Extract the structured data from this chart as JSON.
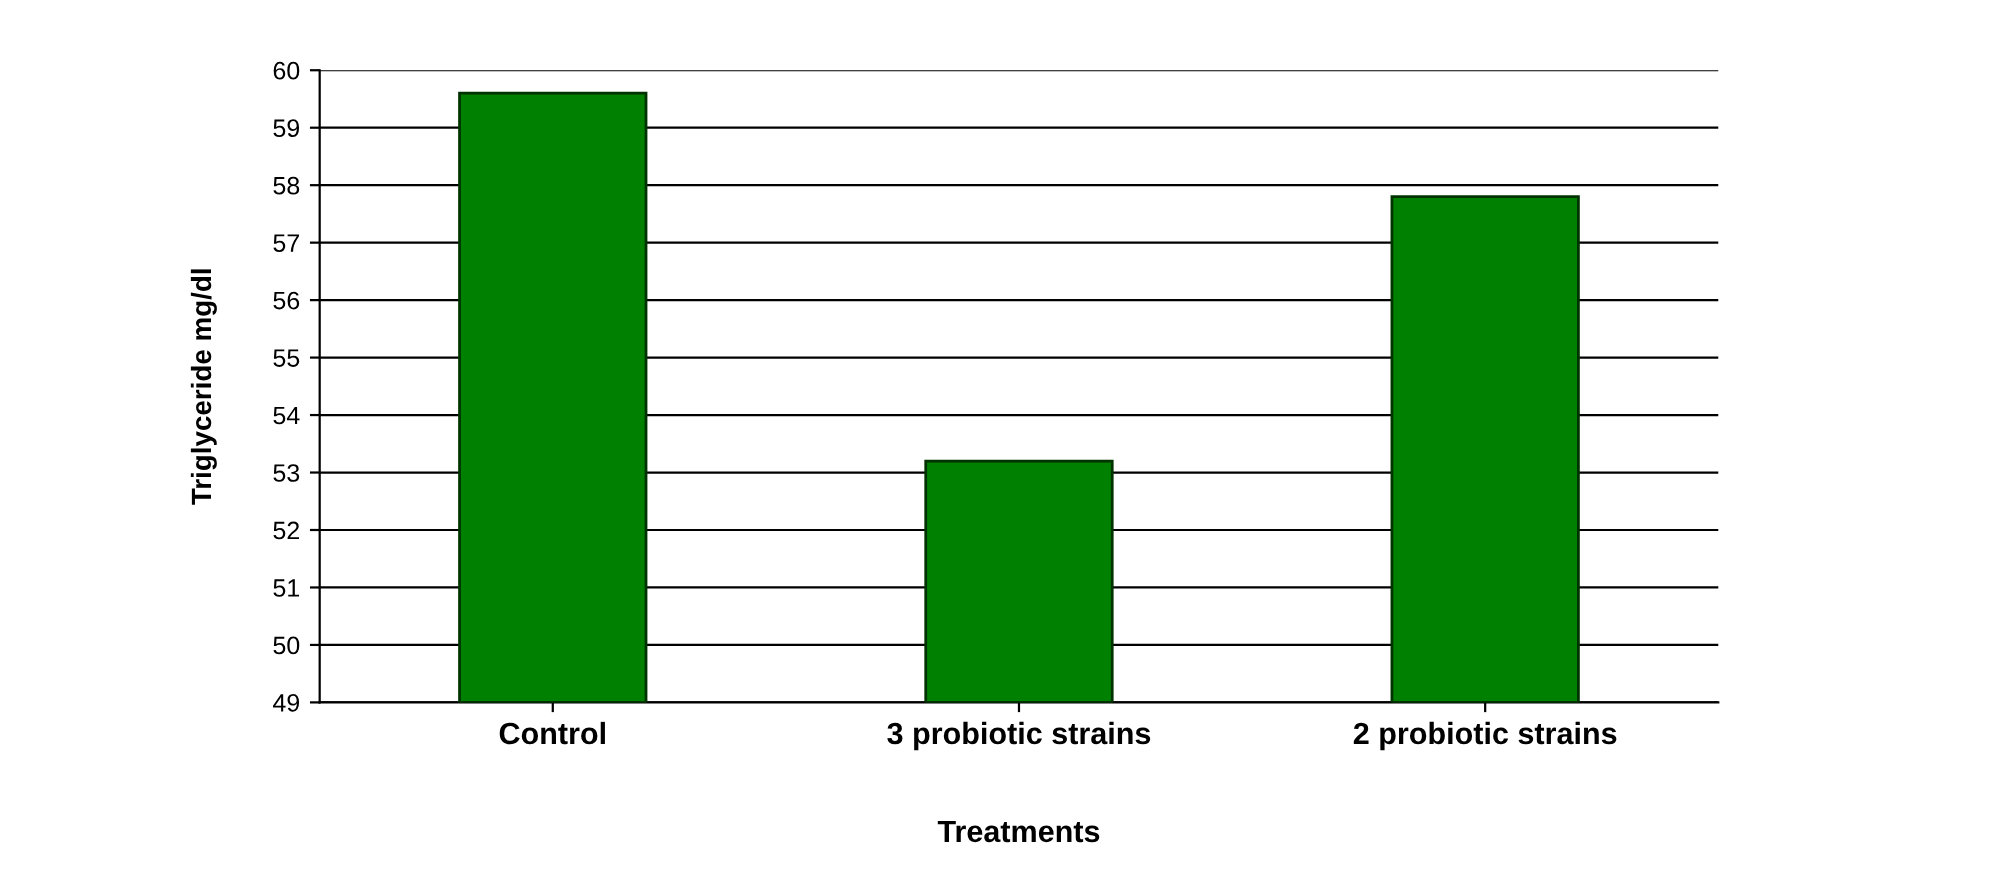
{
  "chart_data": {
    "type": "bar",
    "xlabel": "Treatments",
    "ylabel": "Triglyceride mg/dl",
    "categories": [
      "Control",
      "3 probiotic strains",
      "2 probiotic strains"
    ],
    "values": [
      59.6,
      53.2,
      57.8
    ],
    "color": "#008000",
    "ylim": [
      49,
      60
    ],
    "yticks": [
      49,
      50,
      51,
      52,
      53,
      54,
      55,
      56,
      57,
      58,
      59,
      60
    ],
    "grid": "y"
  }
}
